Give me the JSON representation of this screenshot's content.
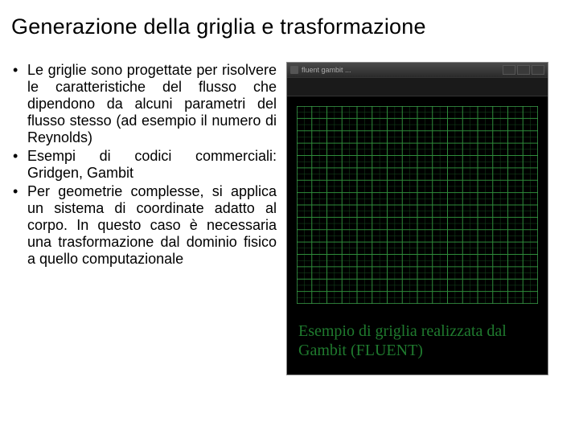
{
  "title": "Generazione della griglia e trasformazione",
  "bullets": [
    "Le griglie sono progettate per risolvere le caratteristiche del flusso che dipendono da alcuni parametri del flusso stesso (ad esempio il numero di Reynolds)",
    "Esempi di codici commerciali: Gridgen, Gambit",
    "Per geometrie complesse, si applica un sistema di coordinate adatto al corpo. In questo caso è necessaria una trasformazione dal dominio fisico a quello computazionale"
  ],
  "figure": {
    "window_title_hint": "fluent gambit ...",
    "caption_text": "Esempio di griglia realizzata dal Gambit (FLUENT)",
    "caption_color": "#1f7a2e",
    "grid": {
      "background_color": "#000000",
      "line_color_major": "#2e8b3a",
      "line_color_minor": "#164a1e",
      "frame_color": "#3aa04a",
      "major_divisions": 16,
      "minor_between_major": 1,
      "aspect_ratio": 1.22,
      "line_width_major": 1,
      "line_width_minor": 0.5,
      "line_width_frame": 1.5
    }
  }
}
